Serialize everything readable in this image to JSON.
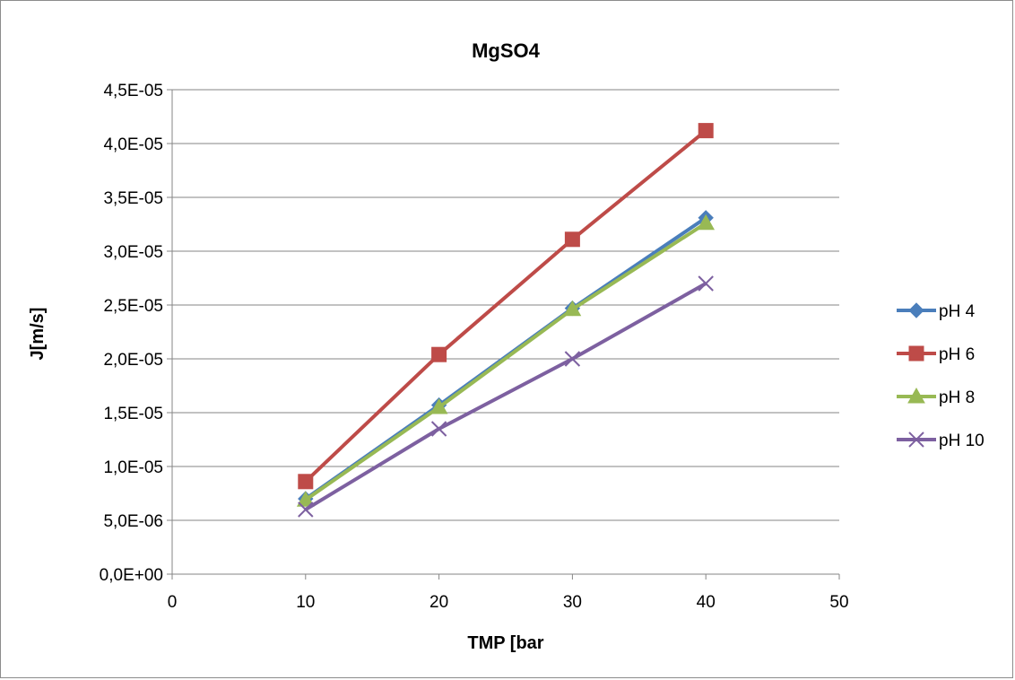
{
  "chart_data": {
    "type": "line",
    "title": "MgSO4",
    "xlabel": "TMP [bar",
    "ylabel": "J[m/s]",
    "xlim": [
      0,
      50
    ],
    "ylim": [
      0,
      4.5e-05
    ],
    "x_ticks": [
      0,
      10,
      20,
      30,
      40,
      50
    ],
    "x_tick_labels": [
      "0",
      "10",
      "20",
      "30",
      "40",
      "50"
    ],
    "y_ticks": [
      0,
      5e-06,
      1e-05,
      1.5e-05,
      2e-05,
      2.5e-05,
      3e-05,
      3.5e-05,
      4e-05,
      4.5e-05
    ],
    "y_tick_labels": [
      "0,0E+00",
      "5,0E-06",
      "1,0E-05",
      "1,5E-05",
      "2,0E-05",
      "2,5E-05",
      "3,0E-05",
      "3,5E-05",
      "4,0E-05",
      "4,5E-05"
    ],
    "grid": "horizontal",
    "legend_position": "right",
    "x": [
      10,
      20,
      30,
      40
    ],
    "series": [
      {
        "name": "pH 4",
        "values": [
          7e-06,
          1.57e-05,
          2.47e-05,
          3.31e-05
        ],
        "color": "#4a7ebb",
        "marker": "diamond"
      },
      {
        "name": "pH 6",
        "values": [
          8.6e-06,
          2.04e-05,
          3.11e-05,
          4.12e-05
        ],
        "color": "#be4b48",
        "marker": "square"
      },
      {
        "name": "pH 8",
        "values": [
          6.9e-06,
          1.55e-05,
          2.46e-05,
          3.26e-05
        ],
        "color": "#98b954",
        "marker": "triangle"
      },
      {
        "name": "pH 10",
        "values": [
          6e-06,
          1.35e-05,
          2e-05,
          2.7e-05
        ],
        "color": "#7d60a0",
        "marker": "x"
      }
    ]
  }
}
